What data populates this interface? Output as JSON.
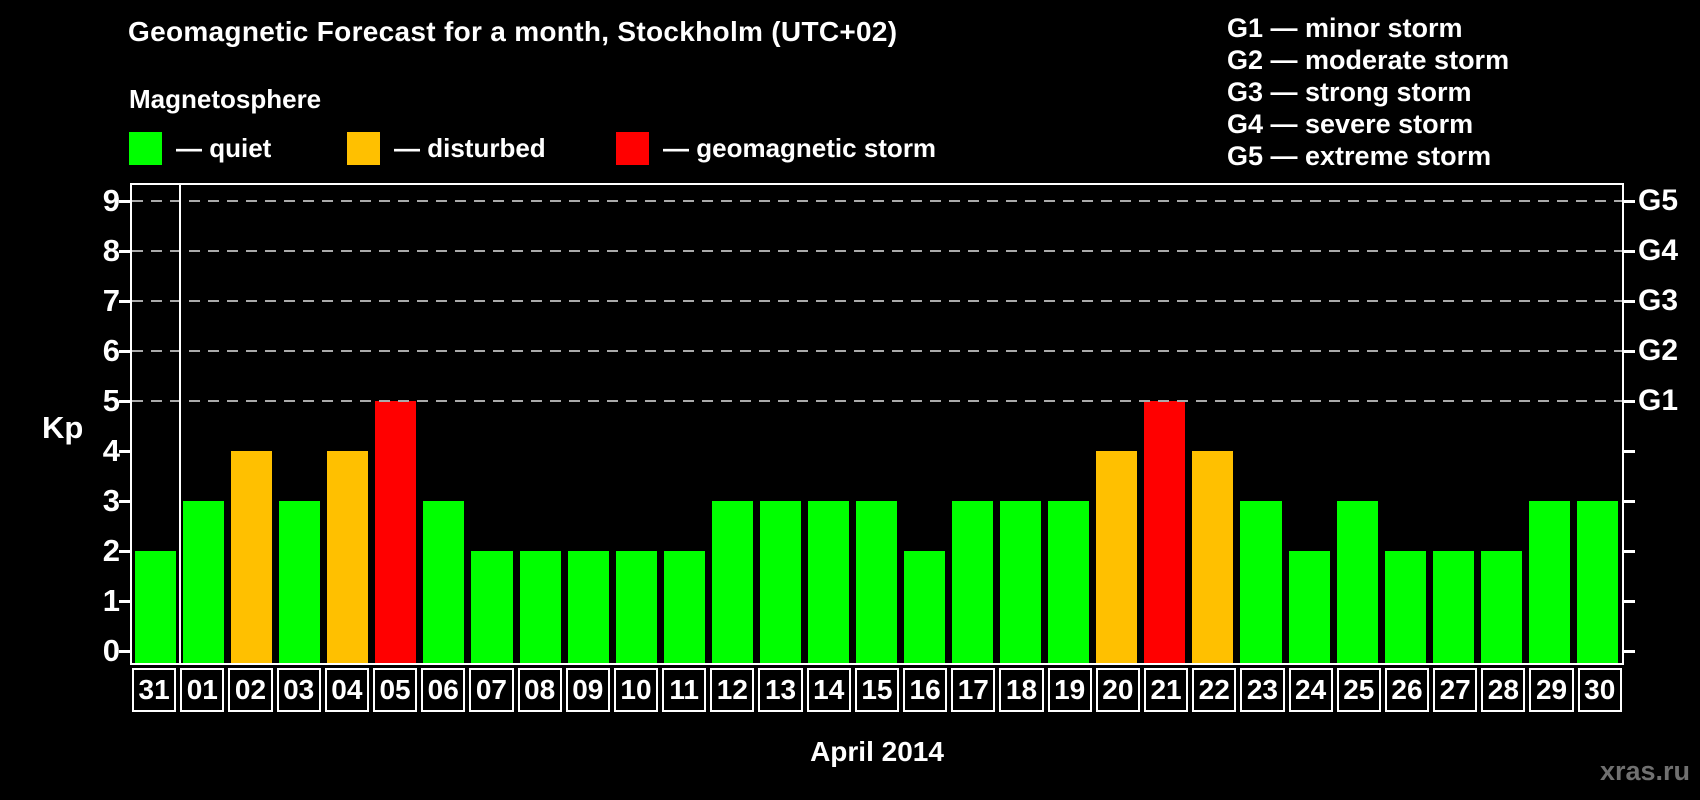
{
  "title": "Geomagnetic Forecast for a month, Stockholm (UTC+02)",
  "subtitle": "Magnetosphere",
  "legend": {
    "quiet": {
      "label": "— quiet",
      "color": "#00ff00"
    },
    "disturbed": {
      "label": "— disturbed",
      "color": "#ffc000"
    },
    "storm": {
      "label": "— geomagnetic storm",
      "color": "#ff0000"
    }
  },
  "storm_scale": {
    "lines": [
      "G1 — minor storm",
      "G2 — moderate storm",
      "G3 — strong storm",
      "G4 — severe storm",
      "G5 — extreme storm"
    ]
  },
  "watermark": "xras.ru",
  "chart_data": {
    "type": "bar",
    "title": "Geomagnetic Forecast for a month, Stockholm (UTC+02)",
    "xlabel": "April 2014",
    "ylabel": "Kp",
    "ylim": [
      0,
      9
    ],
    "yticks": [
      0,
      1,
      2,
      3,
      4,
      5,
      6,
      7,
      8,
      9
    ],
    "grid": {
      "horizontal_dashed_at": [
        5,
        6,
        7,
        8,
        9
      ],
      "color": "#aaaaaa"
    },
    "right_axis": {
      "labels": [
        {
          "kp": 5,
          "label": "G1"
        },
        {
          "kp": 6,
          "label": "G2"
        },
        {
          "kp": 7,
          "label": "G3"
        },
        {
          "kp": 8,
          "label": "G4"
        },
        {
          "kp": 9,
          "label": "G5"
        }
      ]
    },
    "legend_position": "top-left",
    "month_separator_after_index": 0,
    "categories": [
      "31",
      "01",
      "02",
      "03",
      "04",
      "05",
      "06",
      "07",
      "08",
      "09",
      "10",
      "11",
      "12",
      "13",
      "14",
      "15",
      "16",
      "17",
      "18",
      "19",
      "20",
      "21",
      "22",
      "23",
      "24",
      "25",
      "26",
      "27",
      "28",
      "29",
      "30"
    ],
    "values": [
      2,
      3,
      4,
      3,
      4,
      5,
      3,
      2,
      2,
      2,
      2,
      2,
      3,
      3,
      3,
      3,
      2,
      3,
      3,
      3,
      4,
      5,
      4,
      3,
      2,
      3,
      2,
      2,
      2,
      3,
      3
    ],
    "states": [
      "quiet",
      "quiet",
      "disturbed",
      "quiet",
      "disturbed",
      "storm",
      "quiet",
      "quiet",
      "quiet",
      "quiet",
      "quiet",
      "quiet",
      "quiet",
      "quiet",
      "quiet",
      "quiet",
      "quiet",
      "quiet",
      "quiet",
      "quiet",
      "disturbed",
      "storm",
      "disturbed",
      "quiet",
      "quiet",
      "quiet",
      "quiet",
      "quiet",
      "quiet",
      "quiet",
      "quiet"
    ],
    "colors": {
      "quiet": "#00ff00",
      "disturbed": "#ffc000",
      "storm": "#ff0000"
    }
  }
}
